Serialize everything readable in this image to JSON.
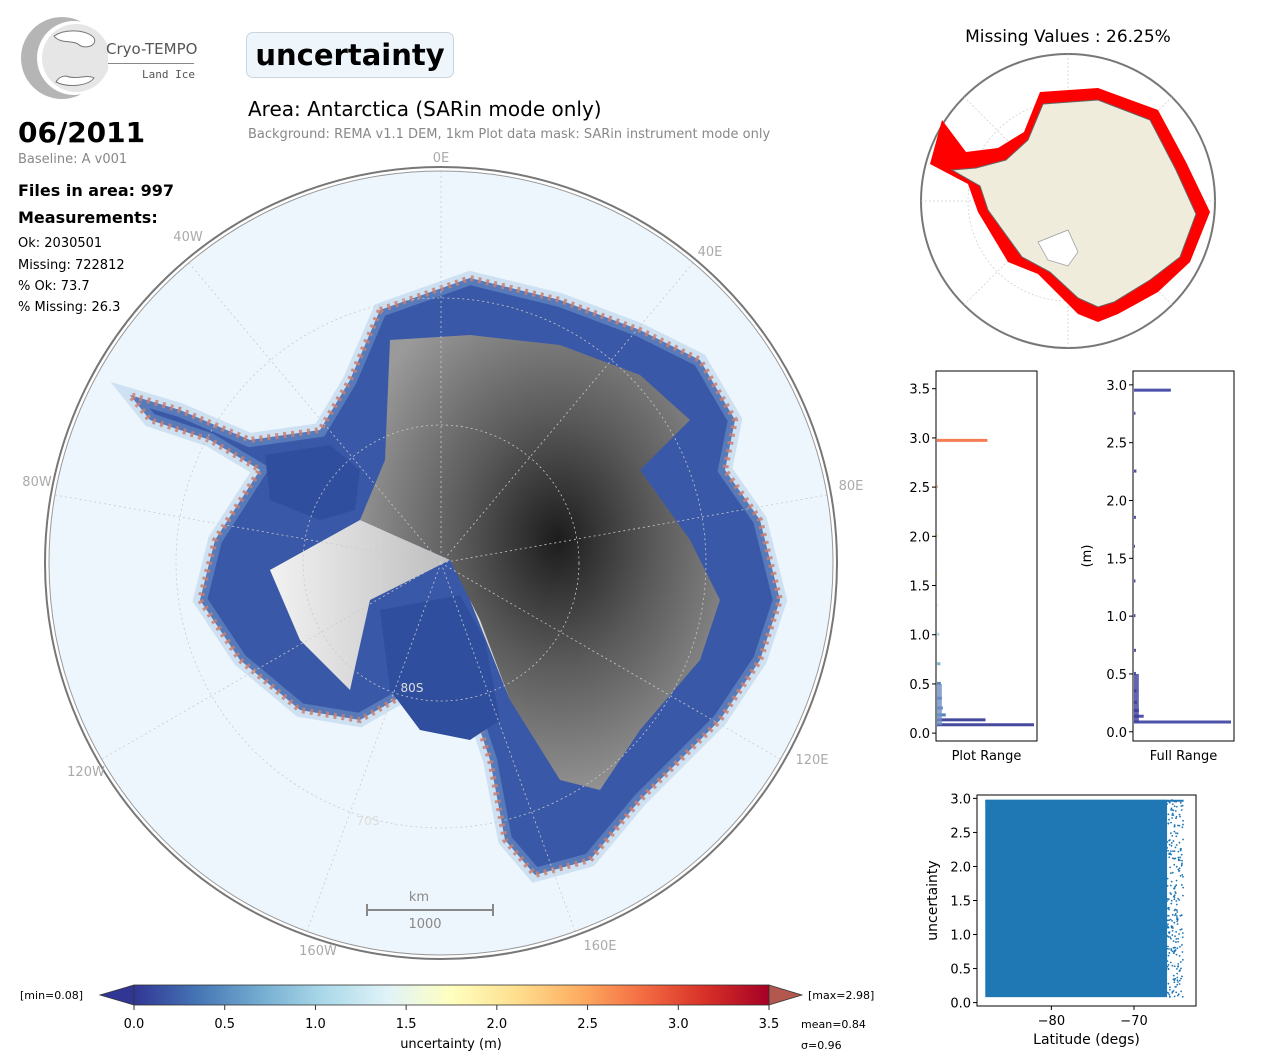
{
  "header": {
    "logo_name": "Cryo-TEMPO",
    "logo_sub": "Land Ice",
    "parameter_title": "uncertainty",
    "date": "06/2011",
    "baseline": "Baseline: A v001",
    "files_in_area": "Files in area: 997",
    "measurements_label": "Measurements:",
    "stats": [
      "Ok: 2030501",
      "Missing: 722812",
      "% Ok: 73.7",
      "% Missing: 26.3"
    ],
    "area_title": "Area: Antarctica (SARin mode only)",
    "area_subtitle": "Background: REMA v1.1 DEM, 1km   Plot data mask: SARin instrument mode only"
  },
  "map": {
    "longitude_labels": [
      "0E",
      "40E",
      "80E",
      "120E",
      "160E",
      "160W",
      "120W",
      "80W",
      "40W"
    ],
    "latitude_labels": [
      "80S",
      "70S"
    ],
    "scale_bar": {
      "unit": "km",
      "value": "1000"
    },
    "colors": {
      "ocean": "#eef6fd",
      "ice_shelf_data": "#3a54a4",
      "edge_high": "#e8603c",
      "dem_dark": "#222222",
      "dem_light": "#e6e6e6"
    }
  },
  "missing_map": {
    "title": "Missing Values : 26.25%",
    "colors": {
      "land": "#efecdc",
      "missing": "#ff0000"
    }
  },
  "colorbar": {
    "min_label": "[min=0.08]",
    "max_label": "[max=2.98]",
    "ticks": [
      "0.0",
      "0.5",
      "1.0",
      "1.5",
      "2.0",
      "2.5",
      "3.0",
      "3.5"
    ],
    "label": "uncertainty (m)",
    "mean_label": "mean=0.84",
    "sigma_label": "σ=0.96",
    "range": [
      0.0,
      3.5
    ],
    "colormap": [
      "#313695",
      "#4575b4",
      "#74add1",
      "#abd9e9",
      "#e0f3f8",
      "#ffffbf",
      "#fee090",
      "#fdae61",
      "#f46d43",
      "#d73027",
      "#a50026"
    ]
  },
  "chart_data": [
    {
      "type": "bar",
      "orientation": "horizontal",
      "xlabel": "Plot Range",
      "ylabel": "",
      "ylim": [
        -0.08,
        3.68
      ],
      "yticks": [
        "0.0",
        "0.5",
        "1.0",
        "1.5",
        "2.0",
        "2.5",
        "3.0",
        "3.5"
      ],
      "bins": [
        0.08,
        0.13,
        0.18,
        0.25,
        0.35,
        0.5,
        0.7,
        1.0,
        1.3,
        1.6,
        2.0,
        2.5,
        2.97
      ],
      "values": [
        100,
        50,
        9,
        6,
        5,
        4,
        3.5,
        2.5,
        1.5,
        1,
        0.8,
        0.6,
        52
      ]
    },
    {
      "type": "bar",
      "orientation": "horizontal",
      "xlabel": "Full Range",
      "ylabel": "(m)",
      "ylim": [
        -0.08,
        3.12
      ],
      "yticks": [
        "0.0",
        "0.5",
        "1.0",
        "1.5",
        "2.0",
        "2.5",
        "3.0"
      ],
      "bins": [
        0.08,
        0.13,
        0.18,
        0.25,
        0.35,
        0.5,
        0.7,
        1.0,
        1.3,
        1.6,
        1.85,
        2.25,
        2.75,
        2.95
      ],
      "values": [
        100,
        10,
        5,
        3,
        2.5,
        2,
        2,
        1.5,
        1.5,
        1,
        2,
        2.5,
        1.5,
        38
      ]
    },
    {
      "type": "scatter",
      "xlabel": "Latitude (degs)",
      "ylabel": "uncertainty",
      "xlim": [
        -89,
        -62.5
      ],
      "ylim": [
        -0.05,
        3.05
      ],
      "xticks": [
        "−80",
        "−70"
      ],
      "yticks": [
        "0.0",
        "0.5",
        "1.0",
        "1.5",
        "2.0",
        "2.5",
        "3.0"
      ],
      "x_range": [
        -88,
        -64
      ],
      "y_range": [
        0.08,
        2.98
      ],
      "color": "#1f77b4"
    }
  ]
}
